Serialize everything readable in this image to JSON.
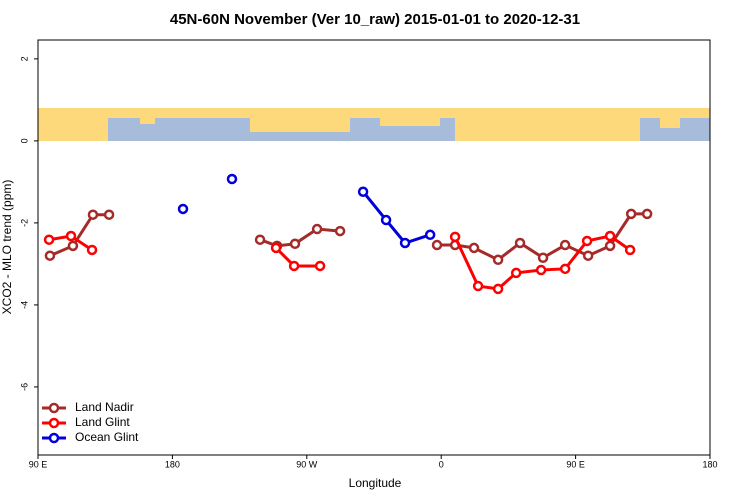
{
  "chart_data": {
    "type": "line",
    "title": "45N-60N November (Ver 10_raw)   2015-01-01 to 2020-12-31",
    "x_label": "Longitude",
    "y_label": "XCO2 - MLO trend (ppm)",
    "xlim": [
      90,
      540
    ],
    "ylim": [
      -7.66,
      2.46
    ],
    "xticks": [
      {
        "value": 90,
        "label": "90 E"
      },
      180,
      {
        "value": 270,
        "label": "90 W"
      },
      {
        "value": 360,
        "label": "0"
      },
      {
        "value": 450,
        "label": "90 E"
      },
      {
        "value": 540,
        "label": "180"
      }
    ],
    "yticks": [
      2,
      0,
      -2,
      -4,
      -6
    ],
    "legend": "bottom-left",
    "series": [
      {
        "name": "Land Nadir",
        "color": "#a52a2a",
        "x": [
          98,
          113.4,
          126.8,
          137.6,
          null,
          238.7,
          250.1,
          262.1,
          276.9,
          292.3,
          null,
          357.2,
          369.3,
          382.0,
          398.1,
          412.8,
          428.2,
          443.0,
          458.4,
          473.1,
          487.2,
          497.9
        ],
        "values": [
          -2.8,
          -2.56,
          -1.8,
          -1.8,
          null,
          -2.41,
          -2.56,
          -2.51,
          -2.15,
          -2.2,
          null,
          -2.54,
          -2.54,
          -2.61,
          -2.9,
          -2.49,
          -2.85,
          -2.54,
          -2.8,
          -2.56,
          -1.78,
          -1.78
        ]
      },
      {
        "name": "Land Glint",
        "color": "#ff0000",
        "x": [
          97.4,
          112.1,
          126.2,
          null,
          249.4,
          261.5,
          278.9,
          null,
          369.3,
          384.7,
          398.1,
          410.2,
          426.9,
          443.0,
          457.7,
          473.1,
          486.5
        ],
        "values": [
          -2.41,
          -2.32,
          -2.66,
          null,
          -2.61,
          -3.05,
          -3.05,
          null,
          -2.34,
          -3.54,
          -3.61,
          -3.22,
          -3.15,
          -3.12,
          -2.44,
          -2.32,
          -2.66
        ]
      },
      {
        "name": "Ocean Glint",
        "color": "#0000dd",
        "x": [
          187.1,
          null,
          219.9,
          null,
          307.7,
          323.1,
          335.8,
          352.6
        ],
        "values": [
          -1.66,
          null,
          -0.93,
          null,
          -1.24,
          -1.93,
          -2.49,
          -2.29
        ]
      }
    ]
  }
}
